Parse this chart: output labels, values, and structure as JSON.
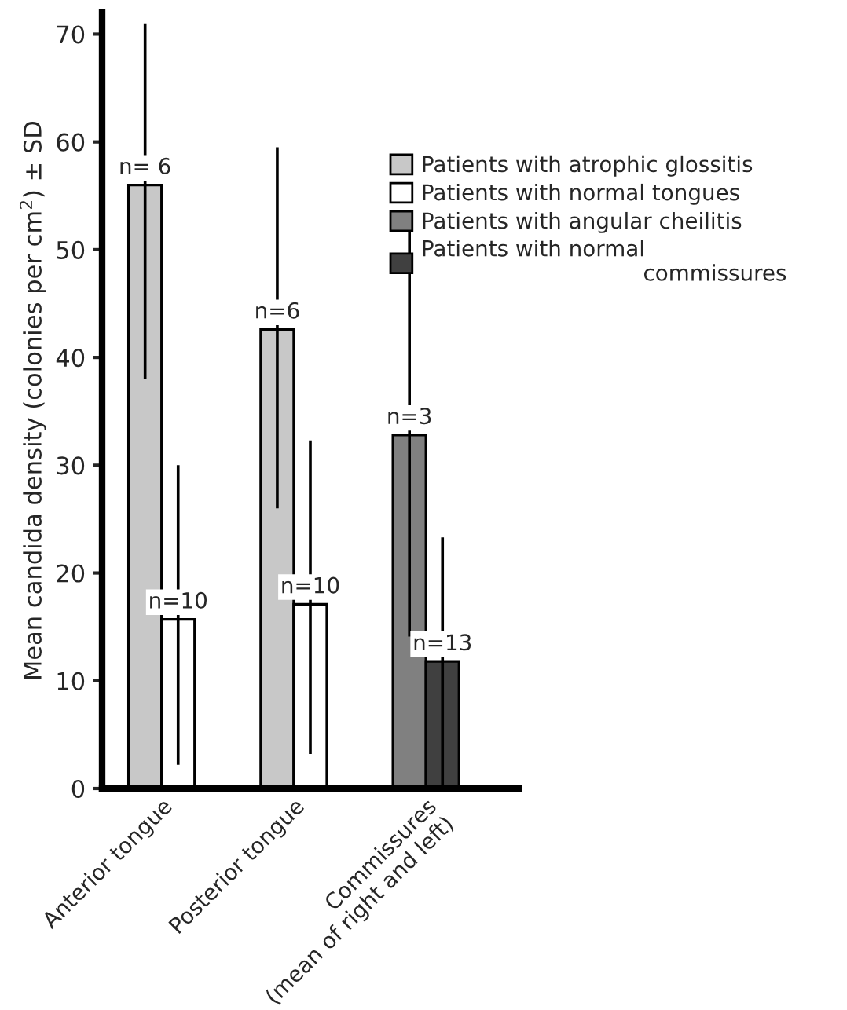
{
  "chart_data": {
    "type": "bar",
    "ylabel": "Mean candida density (colonies per cm$^{2}$) ± SD",
    "categories": [
      "Anterior tongue",
      "Posterior tongue",
      "Commissures\n(mean of right and left)"
    ],
    "series": [
      {
        "name": "Patients with atrophic glossitis",
        "color": "#c8c8c8",
        "values": [
          56,
          42.6,
          null
        ],
        "errors": [
          [
            38,
            71
          ],
          [
            26,
            59.5
          ],
          null
        ]
      },
      {
        "name": "Patients with normal tongues",
        "color": "#ffffff",
        "values": [
          15.7,
          17.1,
          null
        ],
        "errors": [
          [
            2.2,
            30
          ],
          [
            3.2,
            32.3
          ],
          null
        ]
      },
      {
        "name": "Patients with angular cheilitis",
        "color": "#808080",
        "values": [
          null,
          null,
          32.8
        ],
        "errors": [
          null,
          null,
          [
            14.1,
            52.4
          ]
        ]
      },
      {
        "name": "Patients with normal\n                                commissures",
        "color": "#404040",
        "values": [
          null,
          null,
          11.8
        ],
        "errors": [
          null,
          null,
          11.5
        ]
      }
    ],
    "annotations": [
      "n= 6",
      "n=10",
      "n=6",
      "n=10",
      "n=3",
      "n=13"
    ],
    "ylim": [
      0,
      72
    ],
    "yticks": [
      0,
      10,
      20,
      30,
      40,
      50,
      60,
      70
    ],
    "grid": false,
    "legend": "top right"
  }
}
